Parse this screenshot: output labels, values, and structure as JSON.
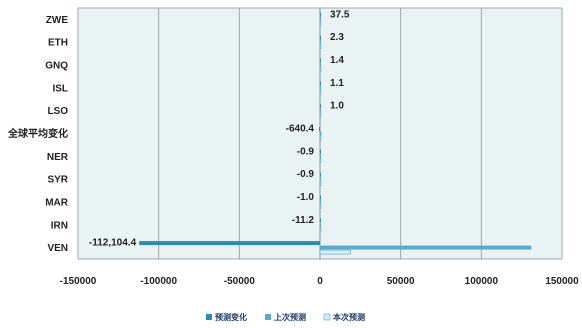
{
  "chart_data": {
    "type": "bar",
    "orientation": "horizontal",
    "categories": [
      "ZWE",
      "ETH",
      "GNQ",
      "ISL",
      "LSO",
      "全球平均变化",
      "NER",
      "SYR",
      "MAR",
      "IRN",
      "VEN"
    ],
    "data_labels": [
      "37.5",
      "2.3",
      "1.4",
      "1.1",
      "1.0",
      "-640.4",
      "-0.9",
      "-0.9",
      "-1.0",
      "-11.2",
      "-112,104.4"
    ],
    "series": [
      {
        "name": "预测变化",
        "color": "#2e8bb0",
        "values": [
          37.5,
          2.3,
          1.4,
          1.1,
          1.0,
          -640.4,
          -0.9,
          -0.9,
          -1.0,
          -11.2,
          -112104.4
        ]
      },
      {
        "name": "上次预测",
        "color": "#5aa9c9",
        "values": [
          60,
          15,
          12,
          8,
          7,
          900,
          2,
          3,
          4,
          18,
          131000
        ]
      },
      {
        "name": "本次预测",
        "color": "#d6ebf2",
        "values": [
          97.5,
          17.3,
          13.4,
          9.1,
          8.0,
          260,
          1.1,
          2.1,
          3.0,
          6.8,
          19000
        ]
      }
    ],
    "xlim": [
      -150000,
      150000
    ],
    "xticks": [
      "-150000",
      "-100000",
      "-50000",
      "0",
      "50000",
      "100000",
      "150000"
    ],
    "xtick_values": [
      -150000,
      -100000,
      -50000,
      0,
      50000,
      100000,
      150000
    ],
    "grid": true,
    "legend_position": "bottom",
    "plot_background": "#eaf3f4"
  }
}
